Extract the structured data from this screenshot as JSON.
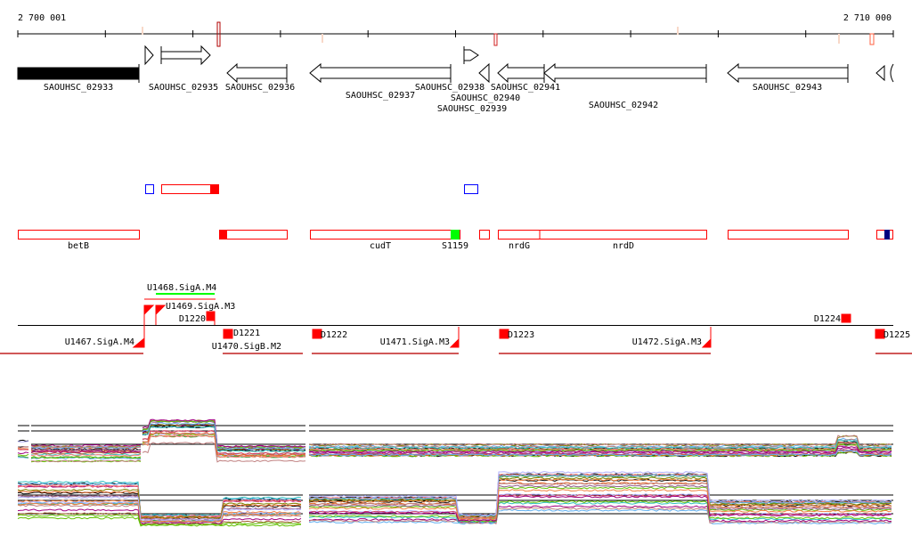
{
  "ruler": {
    "start_label": "2 700 001",
    "end_label": "2 710 000"
  },
  "genes": [
    {
      "label": "SAOUHSC_02933",
      "strand": "+",
      "filled": true
    },
    {
      "label": "SAOUHSC_02935",
      "strand": "+"
    },
    {
      "label": "SAOUHSC_02936",
      "strand": "-"
    },
    {
      "label": "SAOUHSC_02937",
      "strand": "-"
    },
    {
      "label": "SAOUHSC_02938",
      "strand": "-"
    },
    {
      "label": "SAOUHSC_02939",
      "strand": "+"
    },
    {
      "label": "SAOUHSC_02940",
      "strand": "-"
    },
    {
      "label": "SAOUHSC_02941",
      "strand": "-"
    },
    {
      "label": "SAOUHSC_02942",
      "strand": "-"
    },
    {
      "label": "SAOUHSC_02943",
      "strand": "-"
    }
  ],
  "annotations": [
    {
      "label": "betB"
    },
    {
      "label": "cudT"
    },
    {
      "label": "S1159"
    },
    {
      "label": "nrdG"
    },
    {
      "label": "nrdD"
    }
  ],
  "promoters": [
    {
      "label": "U1467.SigA.M4"
    },
    {
      "label": "U1468.SigA.M4"
    },
    {
      "label": "U1469.SigA.M3"
    },
    {
      "label": "U1470.SigB.M2"
    },
    {
      "label": "U1471.SigA.M3"
    },
    {
      "label": "U1472.SigA.M3"
    }
  ],
  "terminators": [
    {
      "label": "D1220"
    },
    {
      "label": "D1221"
    },
    {
      "label": "D1222"
    },
    {
      "label": "D1223"
    },
    {
      "label": "D1224"
    },
    {
      "label": "D1225"
    }
  ],
  "colors": {
    "feature": "#ff0000",
    "sRNA": "#00ff00",
    "blue_box": "#0000ff",
    "navy": "#000080",
    "marker_light": "#f8d8c8",
    "marker_dark": "#b00000"
  }
}
